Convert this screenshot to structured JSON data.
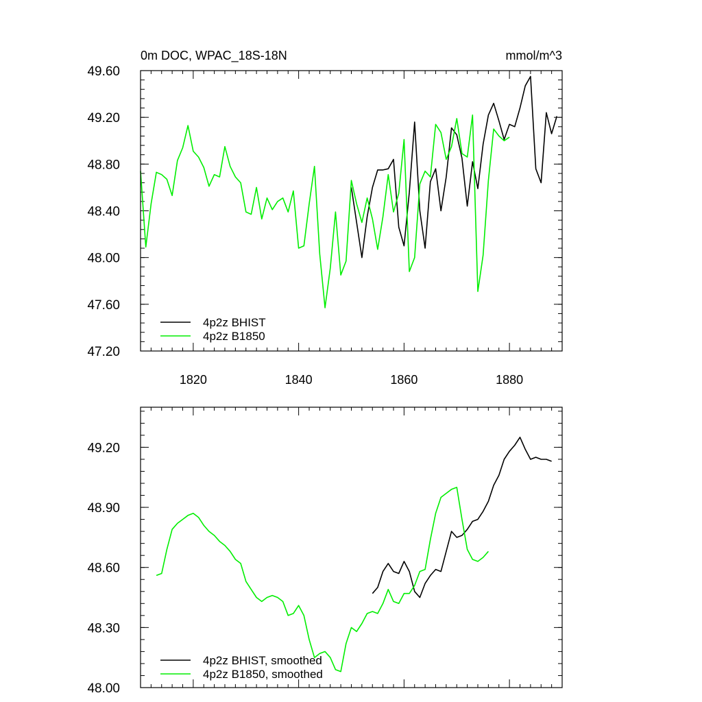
{
  "chart_data": [
    {
      "type": "line",
      "title_left": "0m DOC, WPAC_18S-18N",
      "title_right": "mmol/m^3",
      "xlabel": "",
      "ylabel": "",
      "xlim": [
        1810,
        1890
      ],
      "ylim": [
        47.2,
        49.6
      ],
      "x_ticks": [
        1820,
        1840,
        1860,
        1880
      ],
      "x_tick_labels": [
        "1820",
        "1840",
        "1860",
        "1880"
      ],
      "y_ticks": [
        47.2,
        47.6,
        48.0,
        48.4,
        48.8,
        49.2,
        49.6
      ],
      "y_tick_labels": [
        "47.20",
        "47.60",
        "48.00",
        "48.40",
        "48.80",
        "49.20",
        "49.60"
      ],
      "legend_position": "bottom-left",
      "series": [
        {
          "name": "4p2z BHIST",
          "color": "#000000",
          "x": [
            1850,
            1851,
            1852,
            1853,
            1854,
            1855,
            1856,
            1857,
            1858,
            1859,
            1860,
            1861,
            1862,
            1863,
            1864,
            1865,
            1866,
            1867,
            1868,
            1869,
            1870,
            1871,
            1872,
            1873,
            1874,
            1875,
            1876,
            1877,
            1878,
            1879,
            1880,
            1881,
            1882,
            1883,
            1884,
            1885,
            1886,
            1887,
            1888,
            1889
          ],
          "y": [
            48.6,
            48.3,
            48.0,
            48.35,
            48.6,
            48.75,
            48.75,
            48.76,
            48.84,
            48.26,
            48.1,
            48.56,
            49.16,
            48.4,
            48.08,
            48.65,
            48.76,
            48.4,
            48.69,
            49.11,
            49.05,
            48.85,
            48.44,
            48.82,
            48.59,
            48.97,
            49.22,
            49.32,
            49.17,
            49.01,
            49.14,
            49.12,
            49.28,
            49.47,
            49.55,
            48.76,
            48.64,
            49.24,
            49.06,
            49.21
          ]
        },
        {
          "name": "4p2z B1850",
          "color": "#00ee00",
          "x": [
            1810,
            1811,
            1812,
            1813,
            1814,
            1815,
            1816,
            1817,
            1818,
            1819,
            1820,
            1821,
            1822,
            1823,
            1824,
            1825,
            1826,
            1827,
            1828,
            1829,
            1830,
            1831,
            1832,
            1833,
            1834,
            1835,
            1836,
            1837,
            1838,
            1839,
            1840,
            1841,
            1842,
            1843,
            1844,
            1845,
            1846,
            1847,
            1848,
            1849,
            1850,
            1851,
            1852,
            1853,
            1854,
            1855,
            1856,
            1857,
            1858,
            1859,
            1860,
            1861,
            1862,
            1863,
            1864,
            1865,
            1866,
            1867,
            1868,
            1869,
            1870,
            1871,
            1872,
            1873,
            1874,
            1875,
            1876,
            1877,
            1878,
            1879,
            1880
          ],
          "y": [
            48.74,
            48.09,
            48.46,
            48.73,
            48.71,
            48.67,
            48.53,
            48.83,
            48.94,
            49.13,
            48.91,
            48.86,
            48.77,
            48.61,
            48.71,
            48.69,
            48.95,
            48.78,
            48.69,
            48.64,
            48.39,
            48.37,
            48.6,
            48.33,
            48.51,
            48.41,
            48.48,
            48.51,
            48.39,
            48.57,
            48.08,
            48.1,
            48.46,
            48.78,
            48.03,
            47.57,
            47.91,
            48.39,
            47.85,
            47.97,
            48.66,
            48.46,
            48.3,
            48.51,
            48.33,
            48.07,
            48.35,
            48.71,
            48.39,
            48.55,
            49.01,
            47.88,
            48.0,
            48.63,
            48.74,
            48.69,
            49.14,
            49.07,
            48.84,
            48.95,
            49.19,
            48.89,
            48.86,
            49.22,
            47.71,
            48.02,
            48.66,
            49.1,
            49.04,
            49.0,
            49.03
          ]
        }
      ]
    },
    {
      "type": "line",
      "title_left": "",
      "title_right": "",
      "xlabel": "",
      "ylabel": "",
      "xlim": [
        1810,
        1890
      ],
      "ylim": [
        48.0,
        49.4
      ],
      "x_ticks": [
        1820,
        1840,
        1860,
        1880
      ],
      "x_tick_labels": [],
      "y_ticks": [
        48.0,
        48.3,
        48.6,
        48.9,
        49.2
      ],
      "y_tick_labels": [
        "48.00",
        "48.30",
        "48.60",
        "48.90",
        "49.20"
      ],
      "legend_position": "bottom-left",
      "series": [
        {
          "name": "4p2z BHIST, smoothed",
          "color": "#000000",
          "x": [
            1854,
            1855,
            1856,
            1857,
            1858,
            1859,
            1860,
            1861,
            1862,
            1863,
            1864,
            1865,
            1866,
            1867,
            1868,
            1869,
            1870,
            1871,
            1872,
            1873,
            1874,
            1875,
            1876,
            1877,
            1878,
            1879,
            1880,
            1881,
            1882,
            1883,
            1884,
            1885,
            1886,
            1887,
            1888
          ],
          "y": [
            48.47,
            48.5,
            48.58,
            48.62,
            48.58,
            48.57,
            48.63,
            48.58,
            48.48,
            48.45,
            48.52,
            48.56,
            48.59,
            48.58,
            48.68,
            48.78,
            48.75,
            48.76,
            48.79,
            48.83,
            48.84,
            48.88,
            48.93,
            49.01,
            49.06,
            49.14,
            49.18,
            49.21,
            49.25,
            49.19,
            49.14,
            49.15,
            49.14,
            49.14,
            49.13
          ]
        },
        {
          "name": "4p2z B1850, smoothed",
          "color": "#00ee00",
          "x": [
            1813,
            1814,
            1815,
            1816,
            1817,
            1818,
            1819,
            1820,
            1821,
            1822,
            1823,
            1824,
            1825,
            1826,
            1827,
            1828,
            1829,
            1830,
            1831,
            1832,
            1833,
            1834,
            1835,
            1836,
            1837,
            1838,
            1839,
            1840,
            1841,
            1842,
            1843,
            1844,
            1845,
            1846,
            1847,
            1848,
            1849,
            1850,
            1851,
            1852,
            1853,
            1854,
            1855,
            1856,
            1857,
            1858,
            1859,
            1860,
            1861,
            1862,
            1863,
            1864,
            1865,
            1866,
            1867,
            1868,
            1869,
            1870,
            1871,
            1872,
            1873,
            1874,
            1875,
            1876
          ],
          "y": [
            48.56,
            48.57,
            48.69,
            48.79,
            48.82,
            48.84,
            48.86,
            48.87,
            48.85,
            48.81,
            48.78,
            48.76,
            48.73,
            48.71,
            48.68,
            48.64,
            48.62,
            48.53,
            48.49,
            48.45,
            48.43,
            48.45,
            48.46,
            48.45,
            48.43,
            48.36,
            48.37,
            48.41,
            48.36,
            48.24,
            48.15,
            48.17,
            48.18,
            48.15,
            48.09,
            48.08,
            48.22,
            48.3,
            48.28,
            48.32,
            48.37,
            48.38,
            48.37,
            48.42,
            48.49,
            48.43,
            48.42,
            48.47,
            48.47,
            48.51,
            48.58,
            48.59,
            48.74,
            48.87,
            48.95,
            48.97,
            48.99,
            49.0,
            48.84,
            48.69,
            48.64,
            48.63,
            48.65,
            48.68
          ]
        }
      ]
    }
  ]
}
